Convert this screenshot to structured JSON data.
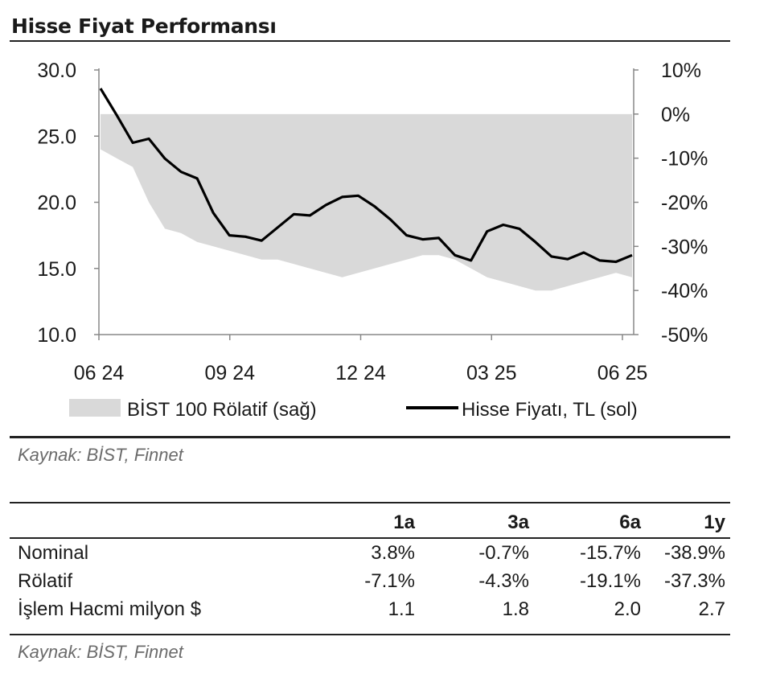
{
  "title": "Hisse Fiyat Performansı",
  "source_top": "Kaynak: BİST, Finnet",
  "source_bottom": "Kaynak: BİST, Finnet",
  "chart_data": {
    "type": "line",
    "x_ticks": [
      "06 24",
      "09 24",
      "12 24",
      "03 25",
      "06 25"
    ],
    "y_left": {
      "ticks": [
        "30.0",
        "25.0",
        "20.0",
        "15.0",
        "10.0"
      ],
      "range": [
        10,
        30
      ]
    },
    "y_right": {
      "ticks": [
        "10%",
        "0%",
        "-10%",
        "-20%",
        "-30%",
        "-40%",
        "-50%"
      ],
      "range": [
        -50,
        10
      ]
    },
    "series": [
      {
        "name": "BİST 100 Rölatif (sağ)",
        "axis": "right",
        "style": "area",
        "color": "#d9d9d9",
        "values": [
          -8,
          -10,
          -12,
          -20,
          -26,
          -27,
          -29,
          -30,
          -31,
          -32,
          -33,
          -33,
          -34,
          -35,
          -36,
          -37,
          -36,
          -35,
          -34,
          -33,
          -32,
          -32,
          -33,
          -35,
          -37,
          -38,
          -39,
          -40,
          -40,
          -39,
          -38,
          -37,
          -36,
          -37
        ]
      },
      {
        "name": "Hisse Fiyatı, TL (sol)",
        "axis": "left",
        "style": "line",
        "color": "#000000",
        "values": [
          28.6,
          26.6,
          24.5,
          24.8,
          23.3,
          22.3,
          21.8,
          19.2,
          17.5,
          17.4,
          17.1,
          18.1,
          19.1,
          19.0,
          19.8,
          20.4,
          20.5,
          19.7,
          18.7,
          17.5,
          17.2,
          17.3,
          16.0,
          15.6,
          17.8,
          18.3,
          18.0,
          17.0,
          15.9,
          15.7,
          16.2,
          15.6,
          15.5,
          16.0
        ]
      }
    ]
  },
  "table": {
    "headers": [
      "",
      "1a",
      "3a",
      "6a",
      "1y"
    ],
    "rows": [
      {
        "label": "Nominal",
        "values": [
          "3.8%",
          "-0.7%",
          "-15.7%",
          "-38.9%"
        ]
      },
      {
        "label": "Rölatif",
        "values": [
          "-7.1%",
          "-4.3%",
          "-19.1%",
          "-37.3%"
        ]
      },
      {
        "label": "İşlem Hacmi milyon $",
        "values": [
          "1.1",
          "1.8",
          "2.0",
          "2.7"
        ]
      }
    ]
  }
}
